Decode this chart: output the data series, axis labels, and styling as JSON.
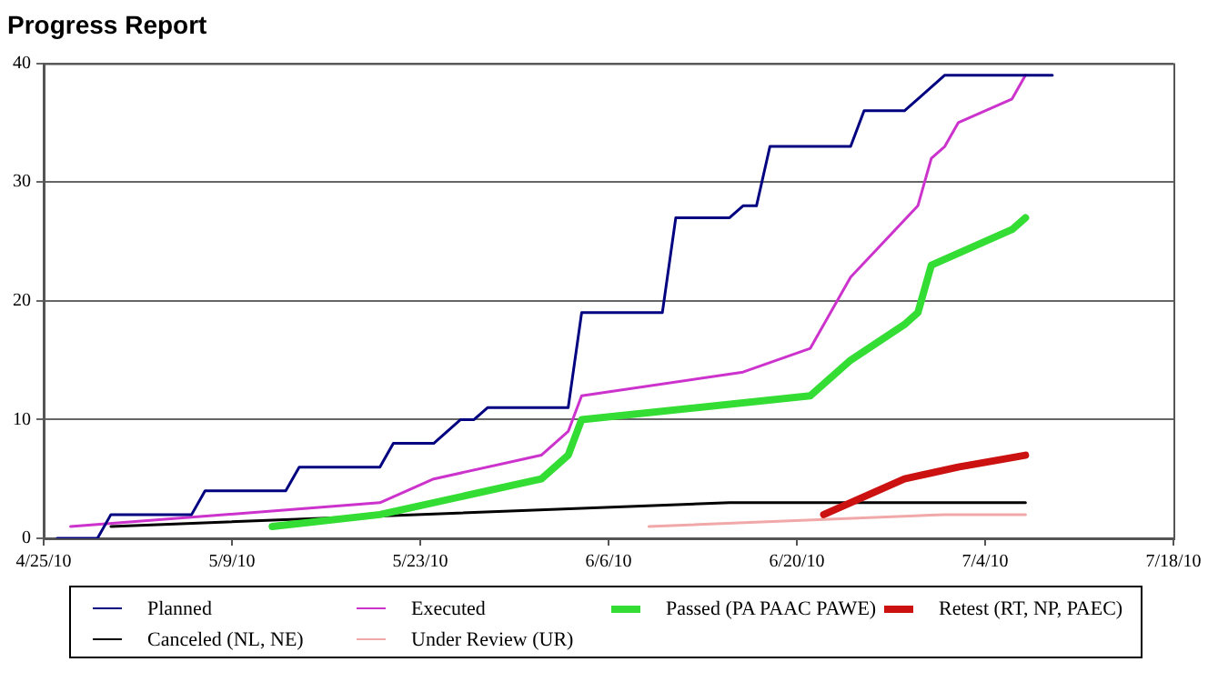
{
  "chart_data": {
    "type": "line",
    "title": "Progress Report",
    "legend": "bottom",
    "grid": "y",
    "line_style": "solid",
    "marker": "none",
    "xlim": [
      "2010-04-25",
      "2010-07-18"
    ],
    "xticks": [
      {
        "value": "2010-04-25",
        "label": "4/25/10"
      },
      {
        "value": "2010-05-09",
        "label": "5/9/10"
      },
      {
        "value": "2010-05-23",
        "label": "5/23/10"
      },
      {
        "value": "2010-06-06",
        "label": "6/6/10"
      },
      {
        "value": "2010-06-20",
        "label": "6/20/10"
      },
      {
        "value": "2010-07-04",
        "label": "7/4/10"
      },
      {
        "value": "2010-07-18",
        "label": "7/18/10"
      }
    ],
    "ylim": [
      0,
      40
    ],
    "yticks": [
      0,
      10,
      20,
      30,
      40
    ],
    "series": [
      {
        "name": "Planned",
        "color": "#000080",
        "x": [
          "2010-04-26",
          "2010-04-29",
          "2010-04-30",
          "2010-05-06",
          "2010-05-07",
          "2010-05-13",
          "2010-05-14",
          "2010-05-20",
          "2010-05-21",
          "2010-05-24",
          "2010-05-26",
          "2010-05-27",
          "2010-05-28",
          "2010-06-03",
          "2010-06-04",
          "2010-06-10",
          "2010-06-11",
          "2010-06-15",
          "2010-06-16",
          "2010-06-17",
          "2010-06-18",
          "2010-06-24",
          "2010-06-25",
          "2010-06-28",
          "2010-07-01",
          "2010-07-09"
        ],
        "values": [
          0,
          0,
          2,
          2,
          4,
          4,
          6,
          6,
          8,
          8,
          10,
          10,
          11,
          11,
          19,
          19,
          27,
          27,
          28,
          28,
          33,
          33,
          36,
          36,
          39,
          39
        ]
      },
      {
        "name": "Executed",
        "color": "#cc33cc",
        "x": [
          "2010-04-27",
          "2010-05-20",
          "2010-05-24",
          "2010-06-01",
          "2010-06-03",
          "2010-06-04",
          "2010-06-16",
          "2010-06-21",
          "2010-06-24",
          "2010-06-29",
          "2010-06-30",
          "2010-07-01",
          "2010-07-02",
          "2010-07-06",
          "2010-07-07"
        ],
        "values": [
          1,
          3,
          5,
          7,
          9,
          12,
          14,
          16,
          22,
          28,
          32,
          33,
          35,
          37,
          39
        ]
      },
      {
        "name": "Passed (PA PAAC PAWE)",
        "color": "#33dd33",
        "x": [
          "2010-05-12",
          "2010-05-20",
          "2010-06-01",
          "2010-06-03",
          "2010-06-04",
          "2010-06-21",
          "2010-06-24",
          "2010-06-28",
          "2010-06-29",
          "2010-06-30",
          "2010-07-06",
          "2010-07-07"
        ],
        "values": [
          1,
          2,
          5,
          7,
          10,
          12,
          15,
          18,
          19,
          23,
          26,
          27
        ]
      },
      {
        "name": "Retest (RT, NP, PAEC)",
        "color": "#cc1111",
        "x": [
          "2010-06-22",
          "2010-06-28",
          "2010-07-02",
          "2010-07-07"
        ],
        "values": [
          2,
          5,
          6,
          7
        ]
      },
      {
        "name": "Canceled (NL, NE)",
        "color": "#000000",
        "x": [
          "2010-04-30",
          "2010-06-15",
          "2010-07-07"
        ],
        "values": [
          1,
          3,
          3
        ]
      },
      {
        "name": "Under Review (UR)",
        "color": "#f0a8a8",
        "x": [
          "2010-06-09",
          "2010-07-01",
          "2010-07-07"
        ],
        "values": [
          1,
          2,
          2
        ]
      }
    ]
  }
}
